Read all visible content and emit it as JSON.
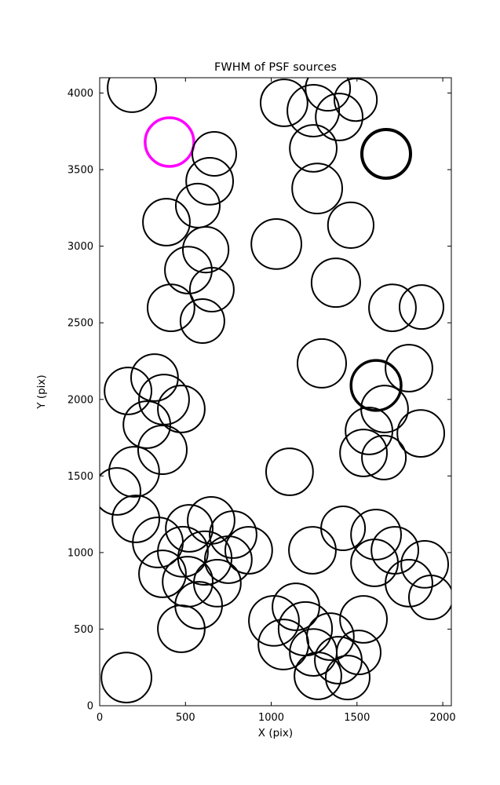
{
  "chart_data": {
    "type": "scatter",
    "title": "FWHM of PSF sources",
    "xlabel": "X (pix)",
    "ylabel": "Y (pix)",
    "xlim": [
      0,
      2050
    ],
    "ylim": [
      0,
      4100
    ],
    "x_ticks": [
      0,
      500,
      1000,
      1500,
      2000
    ],
    "y_ticks": [
      0,
      500,
      1000,
      1500,
      2000,
      2500,
      3000,
      3500,
      4000
    ],
    "grid": false,
    "legend": null,
    "marker": "circle-outline",
    "default_color": "#000000",
    "default_linewidth": 2,
    "highlight_color": "#ff00ff",
    "circles": [
      [
        188,
        4034,
        142
      ],
      [
        407,
        3680,
        142,
        3.5,
        "#ff00ff"
      ],
      [
        668,
        3603,
        128
      ],
      [
        1075,
        3936,
        137
      ],
      [
        1245,
        3885,
        151
      ],
      [
        1330,
        4030,
        130
      ],
      [
        1396,
        3844,
        137
      ],
      [
        1492,
        3956,
        124
      ],
      [
        1245,
        3639,
        137
      ],
      [
        1670,
        3603,
        142,
        4
      ],
      [
        641,
        3424,
        137
      ],
      [
        572,
        3265,
        128
      ],
      [
        389,
        3157,
        137
      ],
      [
        1268,
        3377,
        146
      ],
      [
        1464,
        3137,
        133
      ],
      [
        1030,
        3014,
        146
      ],
      [
        618,
        2977,
        133
      ],
      [
        517,
        2844,
        137
      ],
      [
        654,
        2716,
        128
      ],
      [
        1377,
        2762,
        142
      ],
      [
        416,
        2598,
        137
      ],
      [
        599,
        2511,
        128
      ],
      [
        1707,
        2598,
        137
      ],
      [
        1876,
        2603,
        128
      ],
      [
        1295,
        2235,
        142
      ],
      [
        1803,
        2204,
        137
      ],
      [
        1611,
        2091,
        146,
        3.5
      ],
      [
        1661,
        1937,
        137
      ],
      [
        1872,
        1778,
        137
      ],
      [
        1570,
        1794,
        137
      ],
      [
        1538,
        1650,
        137
      ],
      [
        1657,
        1620,
        128
      ],
      [
        165,
        2055,
        137
      ],
      [
        320,
        2142,
        137
      ],
      [
        375,
        1999,
        146
      ],
      [
        476,
        1937,
        137
      ],
      [
        275,
        1835,
        137
      ],
      [
        366,
        1671,
        142
      ],
      [
        201,
        1527,
        146
      ],
      [
        101,
        1399,
        137
      ],
      [
        1107,
        1527,
        137
      ],
      [
        211,
        1220,
        137
      ],
      [
        339,
        1066,
        146
      ],
      [
        522,
        1158,
        137
      ],
      [
        650,
        1210,
        137
      ],
      [
        778,
        1117,
        137
      ],
      [
        485,
        1005,
        146
      ],
      [
        613,
        964,
        156
      ],
      [
        750,
        953,
        137
      ],
      [
        869,
        1015,
        137
      ],
      [
        366,
        861,
        137
      ],
      [
        513,
        810,
        146
      ],
      [
        686,
        800,
        137
      ],
      [
        577,
        656,
        137
      ],
      [
        476,
        502,
        137
      ],
      [
        1240,
        1015,
        137
      ],
      [
        1419,
        1158,
        128
      ],
      [
        1611,
        1117,
        146
      ],
      [
        1721,
        1015,
        137
      ],
      [
        1602,
        933,
        137
      ],
      [
        1895,
        923,
        137
      ],
      [
        1803,
        800,
        137
      ],
      [
        1931,
        707,
        128
      ],
      [
        1016,
        554,
        146
      ],
      [
        1144,
        646,
        137
      ],
      [
        1199,
        502,
        156
      ],
      [
        1071,
        400,
        146
      ],
      [
        1245,
        348,
        137
      ],
      [
        1345,
        451,
        137
      ],
      [
        1391,
        297,
        137
      ],
      [
        1510,
        348,
        128
      ],
      [
        1272,
        195,
        137
      ],
      [
        1446,
        184,
        128
      ],
      [
        1538,
        564,
        137
      ],
      [
        156,
        184,
        146
      ]
    ]
  }
}
